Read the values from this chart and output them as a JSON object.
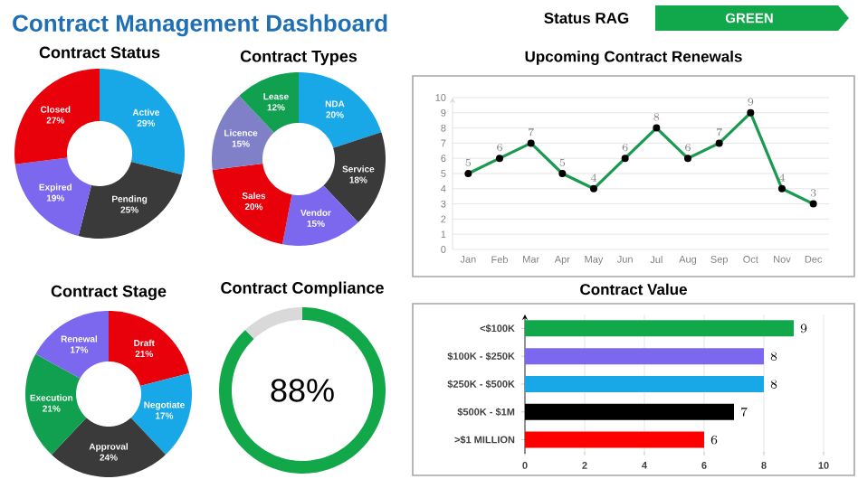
{
  "chart_data": [
    {
      "type": "other",
      "title": "Contract Management Dashboard",
      "annotations": [
        "Status RAG",
        "GREEN"
      ]
    },
    {
      "type": "donut",
      "title": "Contract Status",
      "categories": [
        "Active",
        "Pending",
        "Expired",
        "Closed"
      ],
      "values": [
        29,
        25,
        19,
        27
      ],
      "value_labels": [
        "29%",
        "25%",
        "19%",
        "27%"
      ],
      "colors": [
        "#18a8e8",
        "#3a3a3a",
        "#7b68ee",
        "#e8000b"
      ]
    },
    {
      "type": "donut",
      "title": "Contract Types",
      "categories": [
        "NDA",
        "Service",
        "Vendor",
        "Sales",
        "Licence",
        "Lease"
      ],
      "values": [
        20,
        18,
        15,
        20,
        15,
        12
      ],
      "value_labels": [
        "20%",
        "18%",
        "15%",
        "20%",
        "15%",
        "12%"
      ],
      "colors": [
        "#18a8e8",
        "#3a3a3a",
        "#7b68ee",
        "#e8000b",
        "#8080c8",
        "#10a050"
      ]
    },
    {
      "type": "line",
      "title": "Upcoming Contract Renewals",
      "categories": [
        "Jan",
        "Feb",
        "Mar",
        "Apr",
        "May",
        "Jun",
        "Jul",
        "Aug",
        "Sep",
        "Oct",
        "Nov",
        "Dec"
      ],
      "values": [
        5,
        6,
        7,
        5,
        4,
        6,
        8,
        6,
        7,
        9,
        4,
        3
      ],
      "color": "#1a9a50",
      "ylim": [
        0,
        10
      ],
      "yticks": [
        0,
        1,
        2,
        3,
        4,
        5,
        6,
        7,
        8,
        9,
        10
      ],
      "grid": "y",
      "marker": "circle",
      "data_labels": true
    },
    {
      "type": "donut",
      "title": "Contract Stage",
      "categories": [
        "Draft",
        "Negotiate",
        "Approval",
        "Execution",
        "Renewal"
      ],
      "values": [
        21,
        17,
        24,
        21,
        17
      ],
      "value_labels": [
        "21%",
        "17%",
        "24%",
        "21%",
        "17%"
      ],
      "colors": [
        "#e8000b",
        "#18a8e8",
        "#3a3a3a",
        "#10a050",
        "#7b68ee"
      ]
    },
    {
      "type": "donut",
      "title": "Contract Compliance",
      "categories": [
        null,
        null
      ],
      "values": [
        88,
        12
      ],
      "colors": [
        "#12a84a",
        "#d9d9d9"
      ],
      "annotations": [
        "88%"
      ]
    },
    {
      "type": "bar",
      "orientation": "horizontal",
      "title": "Contract Value",
      "categories": [
        "<$100K",
        "$100K - $250K",
        "$250K - $500K",
        "$500K - $1M",
        ">$1 MILLION"
      ],
      "values": [
        9,
        8,
        8,
        7,
        6
      ],
      "colors": [
        "#10a84a",
        "#7b68ee",
        "#18a8e8",
        "#000000",
        "#ff0000"
      ],
      "xlim": [
        0,
        10
      ],
      "xticks": [
        0,
        2,
        4,
        6,
        8,
        10
      ],
      "grid": "x",
      "data_labels": true
    }
  ]
}
